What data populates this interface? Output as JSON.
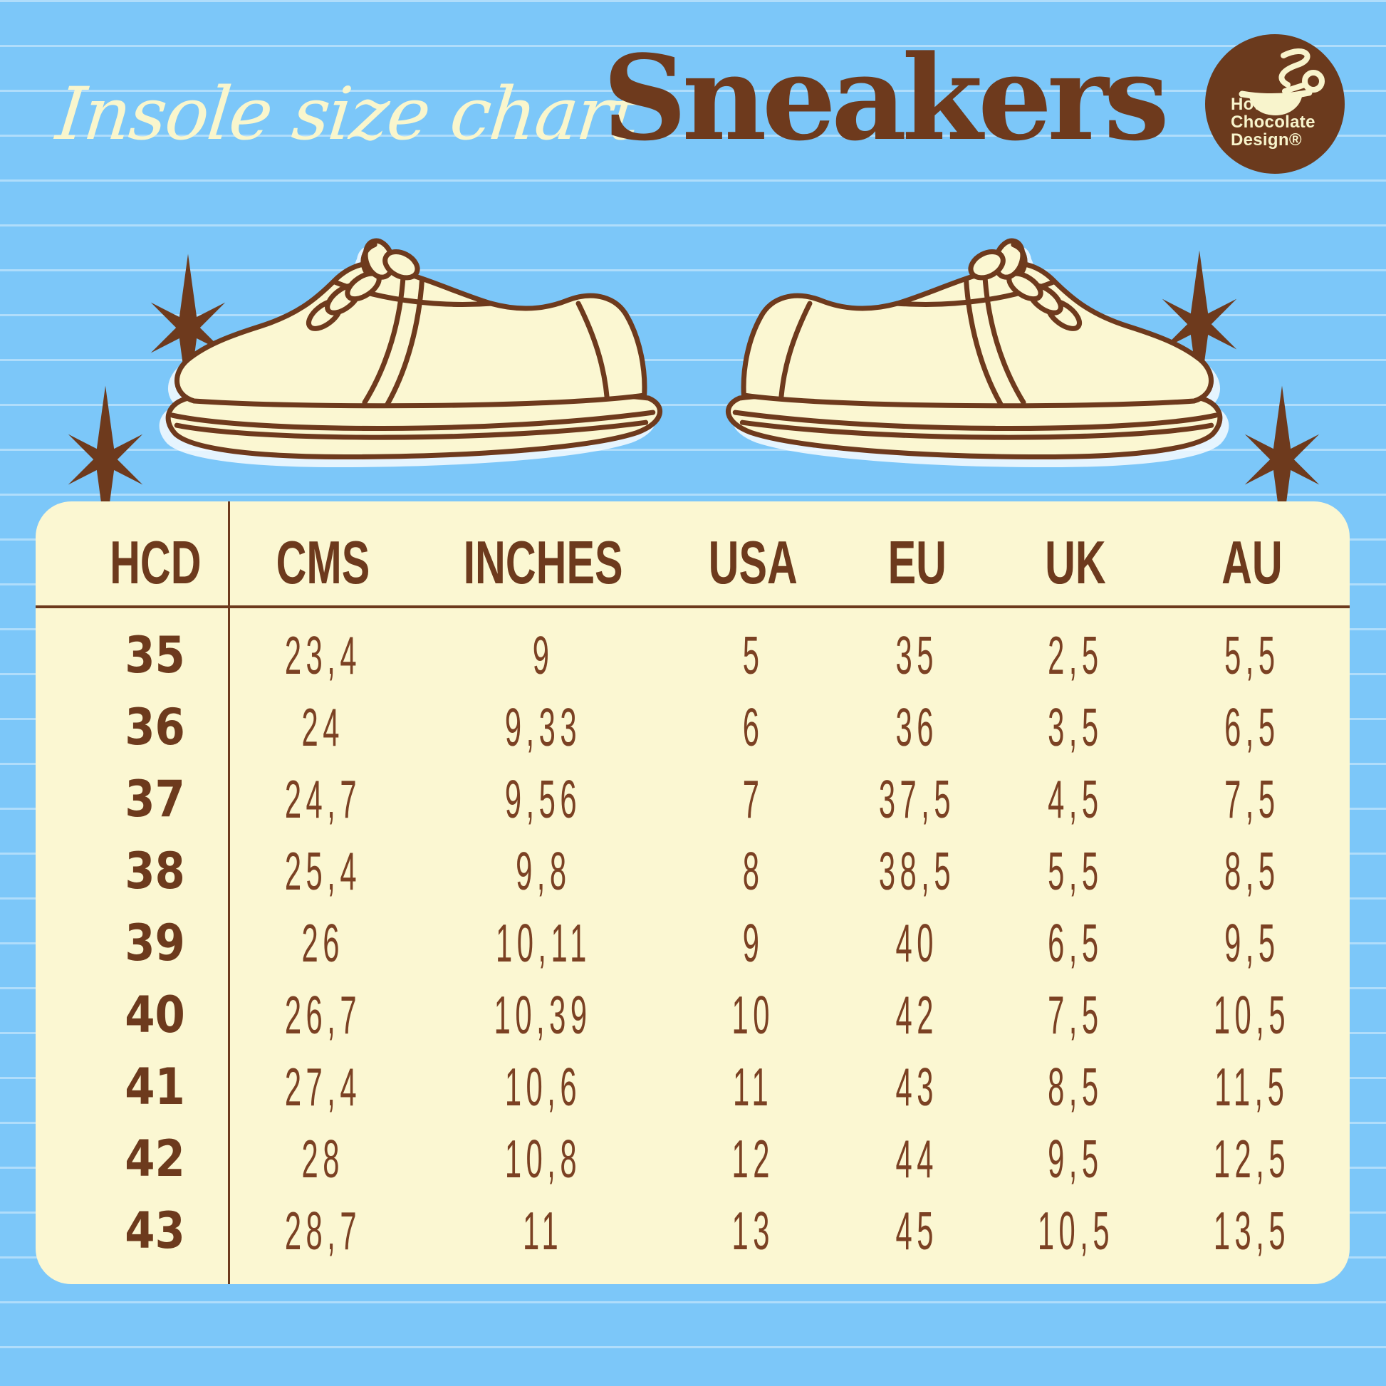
{
  "poster": {
    "subtitle": "Insole size chart",
    "title": "Sneakers"
  },
  "logo": {
    "line1": "Hot",
    "line2": "Chocolate",
    "line3": "Design®"
  },
  "colors": {
    "background_blue": "#7cc7f9",
    "ruled_line": "#b9e2fd",
    "cream": "#fbf7d2",
    "brown": "#6e3a1d",
    "value_brown": "#7b4123"
  },
  "chart_data": {
    "type": "table",
    "title": "Insole size chart — Sneakers",
    "columns": [
      "HCD",
      "CMS",
      "INCHES",
      "USA",
      "EU",
      "UK",
      "AU"
    ],
    "rows": [
      [
        "35",
        "23,4",
        "9",
        "5",
        "35",
        "2,5",
        "5,5"
      ],
      [
        "36",
        "24",
        "9,33",
        "6",
        "36",
        "3,5",
        "6,5"
      ],
      [
        "37",
        "24,7",
        "9,56",
        "7",
        "37,5",
        "4,5",
        "7,5"
      ],
      [
        "38",
        "25,4",
        "9,8",
        "8",
        "38,5",
        "5,5",
        "8,5"
      ],
      [
        "39",
        "26",
        "10,11",
        "9",
        "40",
        "6,5",
        "9,5"
      ],
      [
        "40",
        "26,7",
        "10,39",
        "10",
        "42",
        "7,5",
        "10,5"
      ],
      [
        "41",
        "27,4",
        "10,6",
        "11",
        "43",
        "8,5",
        "11,5"
      ],
      [
        "42",
        "28",
        "10,8",
        "12",
        "44",
        "9,5",
        "12,5"
      ],
      [
        "43",
        "28,7",
        "11",
        "13",
        "45",
        "10,5",
        "13,5"
      ]
    ]
  }
}
